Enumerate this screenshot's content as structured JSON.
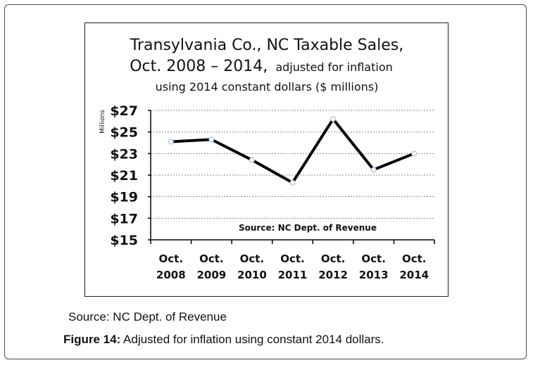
{
  "chart_data": {
    "type": "line",
    "title_line1": "Transylvania Co., NC Taxable Sales,",
    "title_line2_main": "Oct. 2008 – 2014,",
    "title_line2_small": "adjusted for inflation",
    "title_line3": "using 2014 constant dollars ($ millions)",
    "ylabel": "Millions",
    "ylim": [
      15,
      27
    ],
    "y_ticks": [
      "$27",
      "$25",
      "$23",
      "$21",
      "$19",
      "$17",
      "$15"
    ],
    "categories": [
      {
        "line1": "Oct.",
        "line2": "2008"
      },
      {
        "line1": "Oct.",
        "line2": "2009"
      },
      {
        "line1": "Oct.",
        "line2": "2010"
      },
      {
        "line1": "Oct.",
        "line2": "2011"
      },
      {
        "line1": "Oct.",
        "line2": "2012"
      },
      {
        "line1": "Oct.",
        "line2": "2013"
      },
      {
        "line1": "Oct.",
        "line2": "2014"
      }
    ],
    "values": [
      24.1,
      24.3,
      22.4,
      20.3,
      26.2,
      21.5,
      23.0
    ],
    "annotation": "Source: NC Dept. of Revenue",
    "grid": true,
    "line_color": "#000000",
    "grid_color": "#8a8a8a"
  },
  "caption": {
    "source": "Source: NC Dept. of Revenue",
    "figure_label": "Figure 14:",
    "figure_text": " Adjusted for inflation using constant 2014 dollars."
  }
}
